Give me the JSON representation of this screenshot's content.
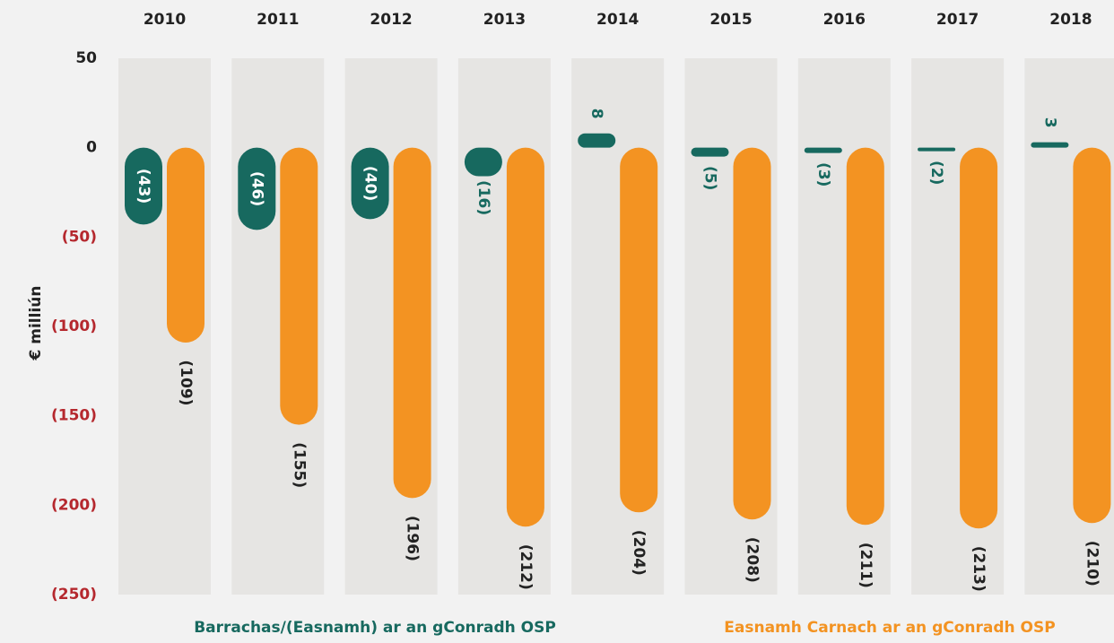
{
  "chart_data": {
    "type": "bar",
    "ylabel": "€ milliún",
    "categories": [
      "2010",
      "2011",
      "2012",
      "2013",
      "2014",
      "2015",
      "2016",
      "2017",
      "2018"
    ],
    "series": [
      {
        "name": "Barrachas/(Easnamh) ar an gConradh OSP",
        "color": "#17695f",
        "values": [
          -43,
          -46,
          -40,
          -16,
          8,
          -5,
          -3,
          -2,
          3
        ],
        "value_labels": [
          "(43)",
          "(46)",
          "(40)",
          "(16)",
          "8",
          "(5)",
          "(3)",
          "(2)",
          "3"
        ]
      },
      {
        "name": "Easnamh Carnach ar an gConradh OSP",
        "color": "#f39322",
        "values": [
          -109,
          -155,
          -196,
          -212,
          -204,
          -208,
          -211,
          -213,
          -210
        ],
        "value_labels": [
          "(109)",
          "(155)",
          "(196)",
          "(212)",
          "(204)",
          "(208)",
          "(211)",
          "(213)",
          "(210)"
        ]
      }
    ],
    "ylim": [
      -250,
      50
    ],
    "yticks": [
      50,
      0,
      {
        "value": -50,
        "label": "(50)"
      },
      {
        "value": -100,
        "label": "(100)"
      },
      {
        "value": -150,
        "label": "(150)"
      },
      {
        "value": -200,
        "label": "(200)"
      },
      {
        "value": -250,
        "label": "(250)"
      }
    ],
    "legend": "bottom"
  }
}
